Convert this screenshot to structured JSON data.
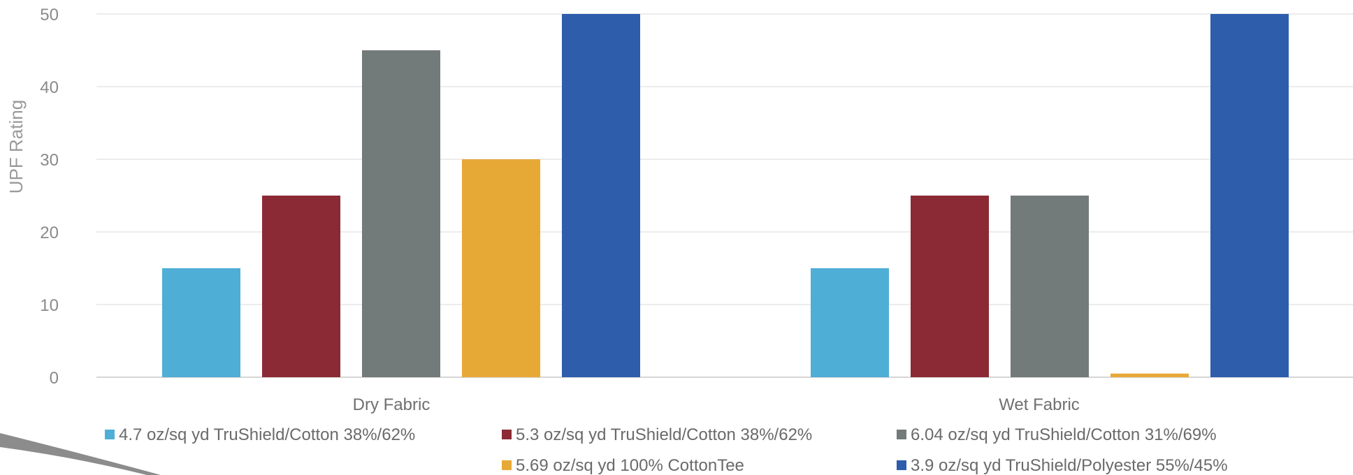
{
  "chart_data": {
    "type": "bar",
    "title": "",
    "xlabel": "",
    "ylabel": "UPF Rating",
    "categories": [
      "Dry Fabric",
      "Wet Fabric"
    ],
    "ylim": [
      0,
      50
    ],
    "yticks": [
      0,
      10,
      20,
      30,
      40,
      50
    ],
    "grid": true,
    "legend_position": "bottom",
    "series": [
      {
        "name": "4.7 oz/sq yd TruShield/Cotton 38%/62%",
        "color": "#4faed6",
        "values": [
          15,
          15
        ]
      },
      {
        "name": "5.3 oz/sq yd TruShield/Cotton 38%/62%",
        "color": "#8b2a35",
        "values": [
          25,
          25
        ]
      },
      {
        "name": "6.04 oz/sq yd TruShield/Cotton 31%/69%",
        "color": "#737a7a",
        "values": [
          45,
          25
        ]
      },
      {
        "name": "5.69 oz/sq yd 100% CottonTee",
        "color": "#e7a936",
        "values": [
          30,
          0.5
        ]
      },
      {
        "name": "3.9 oz/sq yd TruShield/Polyester 55%/45%",
        "color": "#2d5dab",
        "values": [
          50,
          50
        ]
      }
    ]
  }
}
